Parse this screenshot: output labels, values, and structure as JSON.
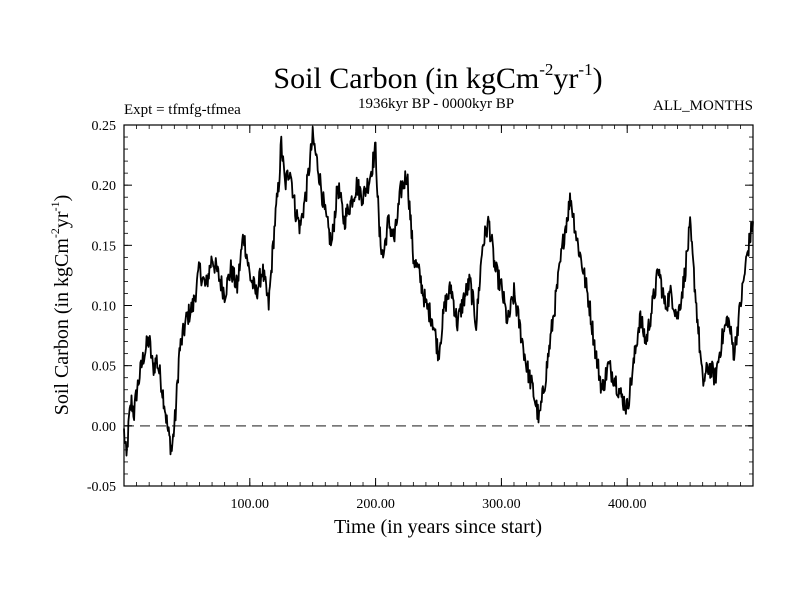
{
  "chart_data": {
    "type": "line",
    "title": {
      "main": "Soil Carbon (in kgCm",
      "exp1": "-2",
      "mid": "yr",
      "exp2": "-1",
      "end": ")"
    },
    "subtitle_left": "Expt = tfmfg-tfmea",
    "subtitle_center": "1936kyr BP - 0000kyr BP",
    "subtitle_right": "ALL_MONTHS",
    "xlabel": "Time (in years since start)",
    "ylabel": {
      "main": "Soil Carbon (in kgCm",
      "exp1": "-2",
      "mid": "yr",
      "exp2": "-1",
      "end": ")"
    },
    "xlim": [
      0,
      500
    ],
    "ylim": [
      -0.05,
      0.25
    ],
    "xticks": [
      100,
      200,
      300,
      400
    ],
    "xtick_labels": [
      "100.00",
      "200.00",
      "300.00",
      "400.00"
    ],
    "yticks": [
      -0.05,
      0.0,
      0.05,
      0.1,
      0.15,
      0.2,
      0.25
    ],
    "ytick_labels": [
      "-0.05",
      "0.00",
      "0.05",
      "0.10",
      "0.15",
      "0.20",
      "0.25"
    ],
    "zero_line": 0.0,
    "series": [
      {
        "name": "Soil Carbon",
        "x": [
          0,
          2,
          4,
          6,
          8,
          10,
          13,
          16,
          20,
          23,
          26,
          29,
          32,
          35,
          38,
          41,
          44,
          50,
          55,
          60,
          65,
          70,
          75,
          80,
          85,
          90,
          95,
          100,
          105,
          110,
          115,
          120,
          123,
          125,
          128,
          132,
          136,
          140,
          145,
          150,
          155,
          160,
          165,
          170,
          175,
          180,
          185,
          190,
          195,
          200,
          203,
          206,
          210,
          215,
          220,
          225,
          230,
          235,
          240,
          245,
          250,
          255,
          260,
          265,
          270,
          275,
          280,
          285,
          290,
          295,
          300,
          305,
          310,
          315,
          320,
          325,
          330,
          335,
          340,
          345,
          350,
          355,
          360,
          365,
          370,
          375,
          380,
          385,
          390,
          395,
          400,
          405,
          410,
          415,
          420,
          425,
          430,
          435,
          440,
          445,
          450,
          455,
          460,
          465,
          470,
          475,
          480,
          485,
          490,
          495,
          500
        ],
        "values": [
          -0.005,
          -0.028,
          0.005,
          0.02,
          0.01,
          0.028,
          0.045,
          0.06,
          0.072,
          0.048,
          0.055,
          0.04,
          0.02,
          -0.005,
          -0.02,
          0.01,
          0.062,
          0.09,
          0.1,
          0.13,
          0.115,
          0.14,
          0.125,
          0.11,
          0.13,
          0.115,
          0.16,
          0.125,
          0.11,
          0.13,
          0.1,
          0.17,
          0.2,
          0.235,
          0.2,
          0.215,
          0.18,
          0.165,
          0.195,
          0.24,
          0.21,
          0.175,
          0.15,
          0.2,
          0.17,
          0.185,
          0.2,
          0.19,
          0.205,
          0.23,
          0.16,
          0.14,
          0.17,
          0.155,
          0.195,
          0.21,
          0.14,
          0.125,
          0.1,
          0.09,
          0.06,
          0.1,
          0.115,
          0.085,
          0.105,
          0.12,
          0.085,
          0.15,
          0.17,
          0.13,
          0.115,
          0.085,
          0.11,
          0.08,
          0.05,
          0.03,
          0.005,
          0.04,
          0.08,
          0.12,
          0.16,
          0.19,
          0.155,
          0.13,
          0.1,
          0.06,
          0.03,
          0.05,
          0.04,
          0.025,
          0.015,
          0.05,
          0.09,
          0.07,
          0.1,
          0.13,
          0.1,
          0.11,
          0.09,
          0.12,
          0.165,
          0.1,
          0.035,
          0.05,
          0.04,
          0.07,
          0.09,
          0.06,
          0.1,
          0.14,
          0.17
        ]
      }
    ]
  }
}
